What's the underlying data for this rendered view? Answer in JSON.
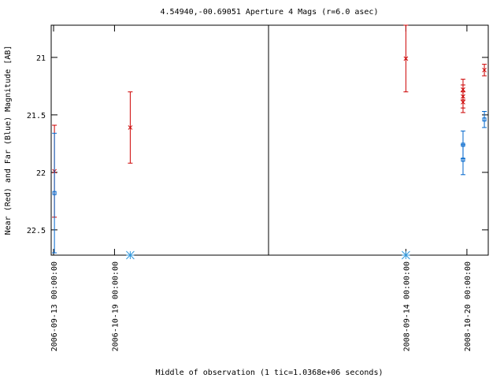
{
  "chart_data": {
    "type": "errorbar",
    "title": "4.54940,-00.69051   Aperture 4 Mags (r=6.0 asec)",
    "ylabel": "Near (Red) and Far (Blue) Magnitude [AB]",
    "xlabel": "Middle of observation (1 tic=1.0368e+06 seconds)",
    "ylim": [
      22.72,
      20.72
    ],
    "yticks": [
      21,
      21.5,
      22,
      22.5
    ],
    "xlim": [
      [
        "2006-09-11 14:00:00",
        "2007-01-18 00:00:00"
      ],
      [
        "2008-06-25 00:00:00",
        "2008-11-01 14:00:00"
      ]
    ],
    "xticks": [
      "2006-09-13 00:00:00",
      "2006-10-19 00:00:00",
      "2008-09-14 00:00:00",
      "2008-10-20 00:00:00"
    ],
    "series": [
      {
        "name": "Near",
        "color": "#cc0000",
        "marker": "x",
        "x": [
          "2006-09-13 12:00:00",
          "2006-10-28 07:00:00",
          "2008-09-14 00:00:00",
          "2008-10-17 17:00:00",
          "2008-10-17 17:00:00",
          "2008-10-17 17:00:00",
          "2008-10-30 07:00:00"
        ],
        "values": [
          21.99,
          21.61,
          21.01,
          21.28,
          21.34,
          21.39,
          21.11
        ],
        "err": [
          0.4,
          0.31,
          0.29,
          0.09,
          0.1,
          0.09,
          0.05
        ]
      },
      {
        "name": "Far",
        "color": "#0066cc",
        "marker": "square",
        "x": [
          "2006-09-13 12:00:00",
          "2008-10-17 17:00:00",
          "2008-10-17 17:00:00",
          "2008-10-30 07:00:00"
        ],
        "values": [
          22.18,
          21.76,
          21.89,
          21.54
        ],
        "err": [
          0.52,
          0.12,
          0.13,
          0.07
        ]
      }
    ],
    "limits": {
      "color": "#3399dd",
      "x": [
        "2006-10-28 07:00:00",
        "2008-09-14 00:00:00"
      ]
    }
  }
}
